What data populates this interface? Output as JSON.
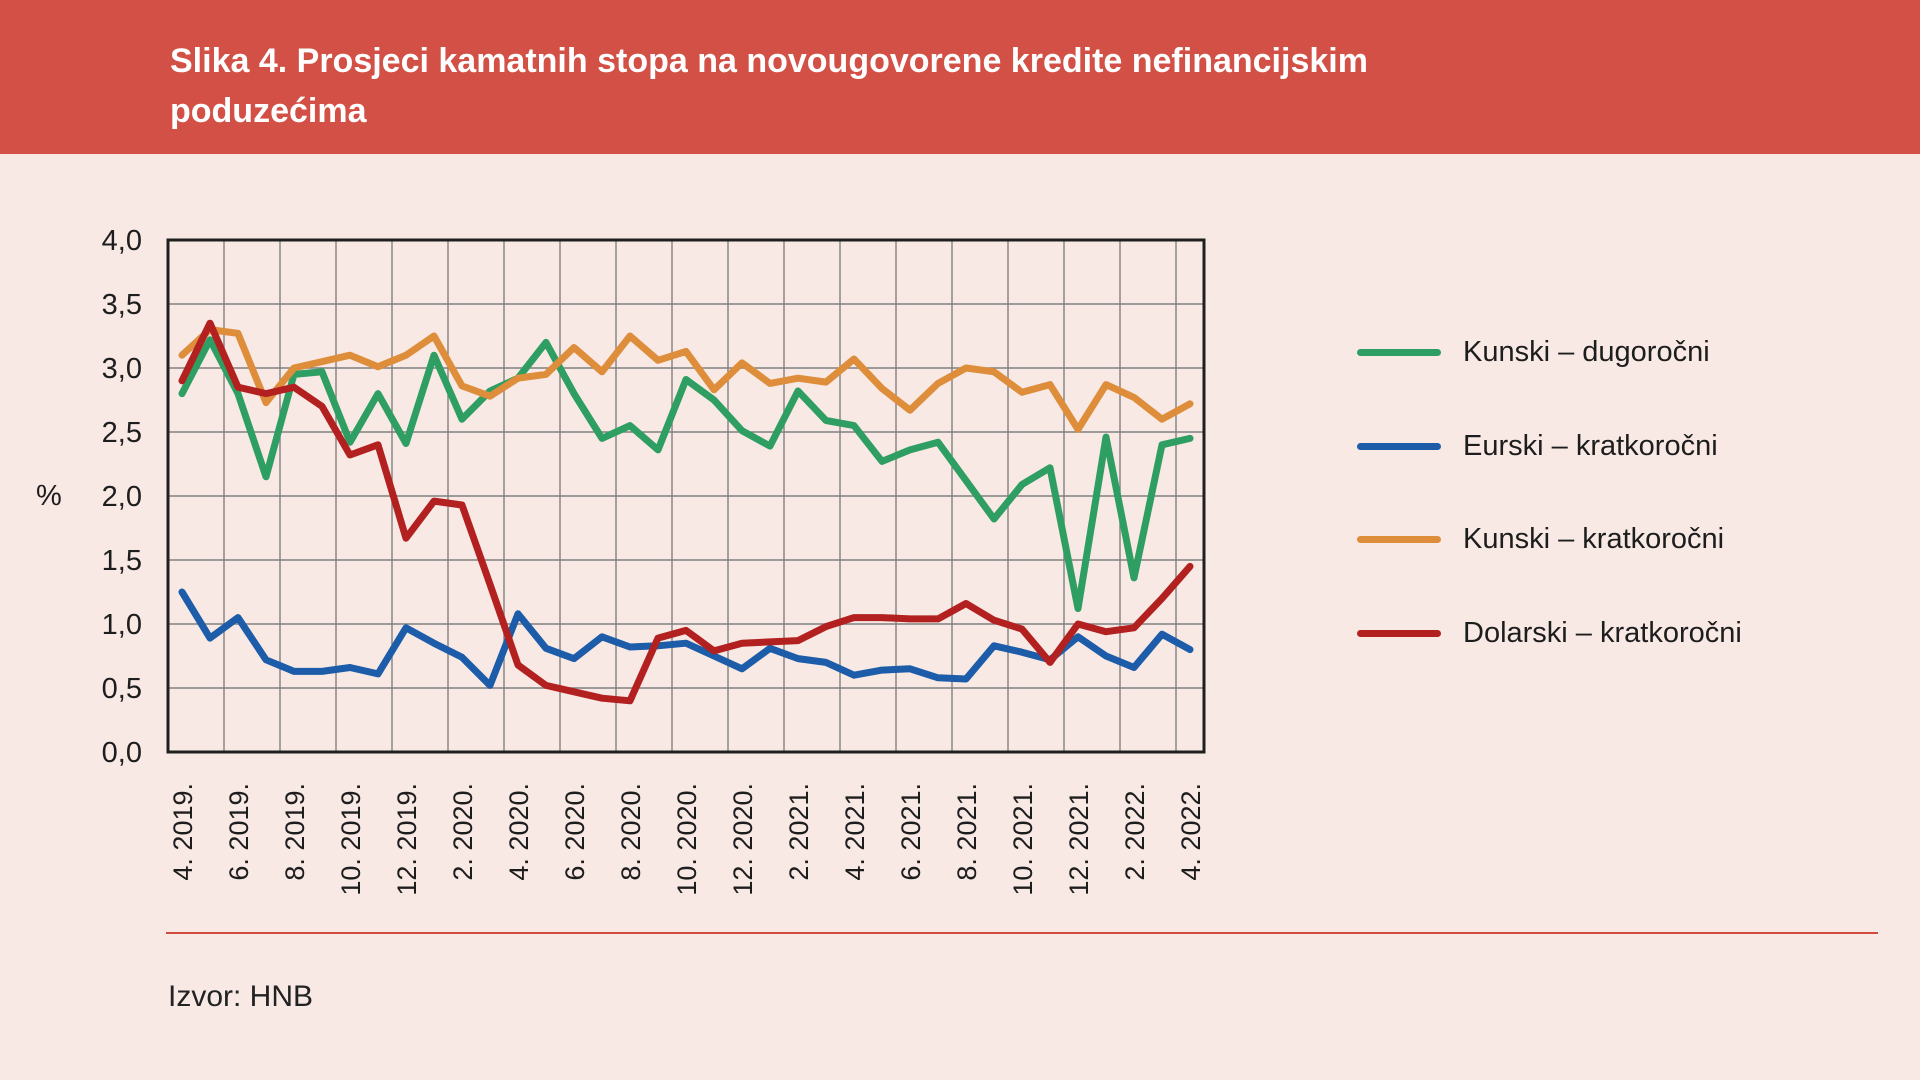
{
  "source": "Izvor: HNB",
  "colors": {
    "header_background": "#d25046",
    "page_background": "#f8e9e5",
    "separator": "#cf4c3c",
    "gridline": "#808080",
    "plot_border": "#1f1f1f",
    "text": "#1d1d1d",
    "title_text": "#ffffff"
  },
  "chart_data": {
    "type": "line",
    "title": "Slika 4. Prosjeci kamatnih stopa na novougovorene kredite nefinancijskim poduzećima",
    "unit": "%",
    "ylabel": "%",
    "xlabel": "",
    "ylim": [
      0,
      4
    ],
    "y_tick_step": 0.5,
    "grid": true,
    "legend_position": "right",
    "y_tick_labels": [
      "0,0",
      "0,5",
      "1,0",
      "1,5",
      "2,0",
      "2,5",
      "3,0",
      "3,5",
      "4,0"
    ],
    "x_tick_labels": [
      "4. 2019.",
      "6. 2019.",
      "8. 2019.",
      "10. 2019.",
      "12. 2019.",
      "2. 2020.",
      "4. 2020.",
      "6. 2020.",
      "8. 2020.",
      "10. 2020.",
      "12. 2020.",
      "2. 2021.",
      "4. 2021.",
      "6. 2021.",
      "8. 2021.",
      "10. 2021.",
      "12. 2021.",
      "2. 2022.",
      "4. 2022."
    ],
    "x": [
      "4. 2019.",
      "5. 2019.",
      "6. 2019.",
      "7. 2019.",
      "8. 2019.",
      "9. 2019.",
      "10. 2019.",
      "11. 2019.",
      "12. 2019.",
      "1. 2020.",
      "2. 2020.",
      "3. 2020.",
      "4. 2020.",
      "5. 2020.",
      "6. 2020.",
      "7. 2020.",
      "8. 2020.",
      "9. 2020.",
      "10. 2020.",
      "11. 2020.",
      "12. 2020.",
      "1. 2021.",
      "2. 2021.",
      "3. 2021.",
      "4. 2021.",
      "5. 2021.",
      "6. 2021.",
      "7. 2021.",
      "8. 2021.",
      "9. 2021.",
      "10. 2021.",
      "11. 2021.",
      "12. 2021.",
      "1. 2022.",
      "2. 2022.",
      "3. 2022.",
      "4. 2022."
    ],
    "series": [
      {
        "name": "Kunski – dugoročni",
        "color": "#2f9e62",
        "values": [
          2.8,
          3.22,
          2.8,
          2.15,
          2.95,
          2.97,
          2.42,
          2.8,
          2.41,
          3.1,
          2.6,
          2.82,
          2.92,
          3.2,
          2.8,
          2.45,
          2.55,
          2.36,
          2.91,
          2.75,
          2.51,
          2.39,
          2.82,
          2.59,
          2.55,
          2.27,
          2.36,
          2.42,
          2.12,
          1.82,
          2.09,
          2.22,
          1.12,
          2.46,
          1.36,
          2.4,
          2.45
        ]
      },
      {
        "name": "Eurski – kratkoročni",
        "color": "#1c5ca8",
        "values": [
          1.25,
          0.89,
          1.05,
          0.72,
          0.63,
          0.63,
          0.66,
          0.61,
          0.97,
          0.85,
          0.74,
          0.52,
          1.08,
          0.81,
          0.73,
          0.9,
          0.82,
          0.83,
          0.85,
          0.75,
          0.65,
          0.81,
          0.73,
          0.7,
          0.6,
          0.64,
          0.65,
          0.58,
          0.57,
          0.83,
          0.78,
          0.72,
          0.9,
          0.75,
          0.66,
          0.92,
          0.8
        ]
      },
      {
        "name": "Kunski – kratkoročni",
        "color": "#de8d3b",
        "values": [
          3.1,
          3.3,
          3.27,
          2.73,
          3.0,
          3.05,
          3.1,
          3.01,
          3.1,
          3.25,
          2.86,
          2.78,
          2.92,
          2.95,
          3.16,
          2.97,
          3.25,
          3.06,
          3.13,
          2.83,
          3.04,
          2.88,
          2.92,
          2.89,
          3.07,
          2.84,
          2.67,
          2.88,
          3.0,
          2.97,
          2.81,
          2.87,
          2.52,
          2.87,
          2.77,
          2.6,
          2.72
        ]
      },
      {
        "name": "Dolarski – kratkoročni",
        "color": "#b2201f",
        "values": [
          2.9,
          3.35,
          2.85,
          2.8,
          2.85,
          2.7,
          2.32,
          2.4,
          1.67,
          1.96,
          1.93,
          1.31,
          0.68,
          0.52,
          0.47,
          0.42,
          0.4,
          0.89,
          0.95,
          0.79,
          0.85,
          0.86,
          0.87,
          0.98,
          1.05,
          1.05,
          1.04,
          1.04,
          1.16,
          1.03,
          0.96,
          0.7,
          1.0,
          0.94,
          0.97,
          1.2,
          1.45
        ]
      }
    ]
  }
}
